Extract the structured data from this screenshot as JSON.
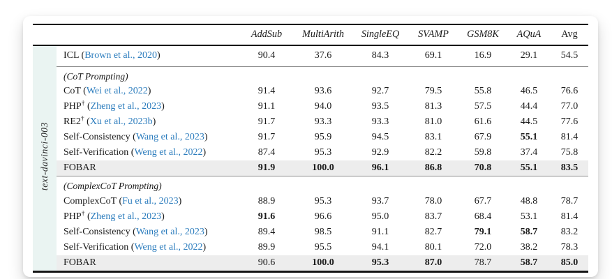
{
  "colors": {
    "citation_blue": "#2b7cbd",
    "highlight_gray": "#ededed",
    "model_column_bg": "#eaf4f2"
  },
  "table": {
    "model_label": "text-davinci-003",
    "columns": [
      "AddSub",
      "MultiArith",
      "SingleEQ",
      "SVAMP",
      "GSM8K",
      "AQuA",
      "Avg"
    ],
    "groups": [
      {
        "section": null,
        "rows": [
          {
            "method": "ICL",
            "sup": "",
            "cite": "Brown et al., 2020",
            "highlight": false,
            "values": [
              "90.4",
              "37.6",
              "84.3",
              "69.1",
              "16.9",
              "29.1",
              "54.5"
            ],
            "bold": [
              false,
              false,
              false,
              false,
              false,
              false,
              false
            ]
          }
        ]
      },
      {
        "section": "(CoT Prompting)",
        "rows": [
          {
            "method": "CoT",
            "sup": "",
            "cite": "Wei et al., 2022",
            "highlight": false,
            "values": [
              "91.4",
              "93.6",
              "92.7",
              "79.5",
              "55.8",
              "46.5",
              "76.6"
            ],
            "bold": [
              false,
              false,
              false,
              false,
              false,
              false,
              false
            ]
          },
          {
            "method": "PHP",
            "sup": "†",
            "cite": "Zheng et al., 2023",
            "highlight": false,
            "values": [
              "91.1",
              "94.0",
              "93.5",
              "81.3",
              "57.5",
              "44.4",
              "77.0"
            ],
            "bold": [
              false,
              false,
              false,
              false,
              false,
              false,
              false
            ]
          },
          {
            "method": "RE2",
            "sup": "†",
            "cite": "Xu et al., 2023b",
            "highlight": false,
            "values": [
              "91.7",
              "93.3",
              "93.3",
              "81.0",
              "61.6",
              "44.5",
              "77.6"
            ],
            "bold": [
              false,
              false,
              false,
              false,
              false,
              false,
              false
            ]
          },
          {
            "method": "Self-Consistency",
            "sup": "",
            "cite": "Wang et al., 2023",
            "highlight": false,
            "values": [
              "91.7",
              "95.9",
              "94.5",
              "83.1",
              "67.9",
              "55.1",
              "81.4"
            ],
            "bold": [
              false,
              false,
              false,
              false,
              false,
              true,
              false
            ]
          },
          {
            "method": "Self-Verification",
            "sup": "",
            "cite": "Weng et al., 2022",
            "highlight": false,
            "values": [
              "87.4",
              "95.3",
              "92.9",
              "82.2",
              "59.8",
              "37.4",
              "75.8"
            ],
            "bold": [
              false,
              false,
              false,
              false,
              false,
              false,
              false
            ]
          },
          {
            "method": "FOBAR",
            "sup": "",
            "cite": "",
            "highlight": true,
            "values": [
              "91.9",
              "100.0",
              "96.1",
              "86.8",
              "70.8",
              "55.1",
              "83.5"
            ],
            "bold": [
              true,
              true,
              true,
              true,
              true,
              true,
              true
            ]
          }
        ]
      },
      {
        "section": "(ComplexCoT Prompting)",
        "rows": [
          {
            "method": "ComplexCoT",
            "sup": "",
            "cite": "Fu et al., 2023",
            "highlight": false,
            "values": [
              "88.9",
              "95.3",
              "93.7",
              "78.0",
              "67.7",
              "48.8",
              "78.7"
            ],
            "bold": [
              false,
              false,
              false,
              false,
              false,
              false,
              false
            ]
          },
          {
            "method": "PHP",
            "sup": "†",
            "cite": "Zheng et al., 2023",
            "highlight": false,
            "values": [
              "91.6",
              "96.6",
              "95.0",
              "83.7",
              "68.4",
              "53.1",
              "81.4"
            ],
            "bold": [
              true,
              false,
              false,
              false,
              false,
              false,
              false
            ]
          },
          {
            "method": "Self-Consistency",
            "sup": "",
            "cite": "Wang et al., 2023",
            "highlight": false,
            "values": [
              "89.4",
              "98.5",
              "91.1",
              "82.7",
              "79.1",
              "58.7",
              "83.2"
            ],
            "bold": [
              false,
              false,
              false,
              false,
              true,
              true,
              false
            ]
          },
          {
            "method": "Self-Verification",
            "sup": "",
            "cite": "Weng et al., 2022",
            "highlight": false,
            "values": [
              "89.9",
              "95.5",
              "94.1",
              "80.1",
              "72.0",
              "38.2",
              "78.3"
            ],
            "bold": [
              false,
              false,
              false,
              false,
              false,
              false,
              false
            ]
          },
          {
            "method": "FOBAR",
            "sup": "",
            "cite": "",
            "highlight": true,
            "values": [
              "90.6",
              "100.0",
              "95.3",
              "87.0",
              "78.7",
              "58.7",
              "85.0"
            ],
            "bold": [
              false,
              true,
              true,
              true,
              false,
              true,
              true
            ]
          }
        ]
      }
    ]
  }
}
